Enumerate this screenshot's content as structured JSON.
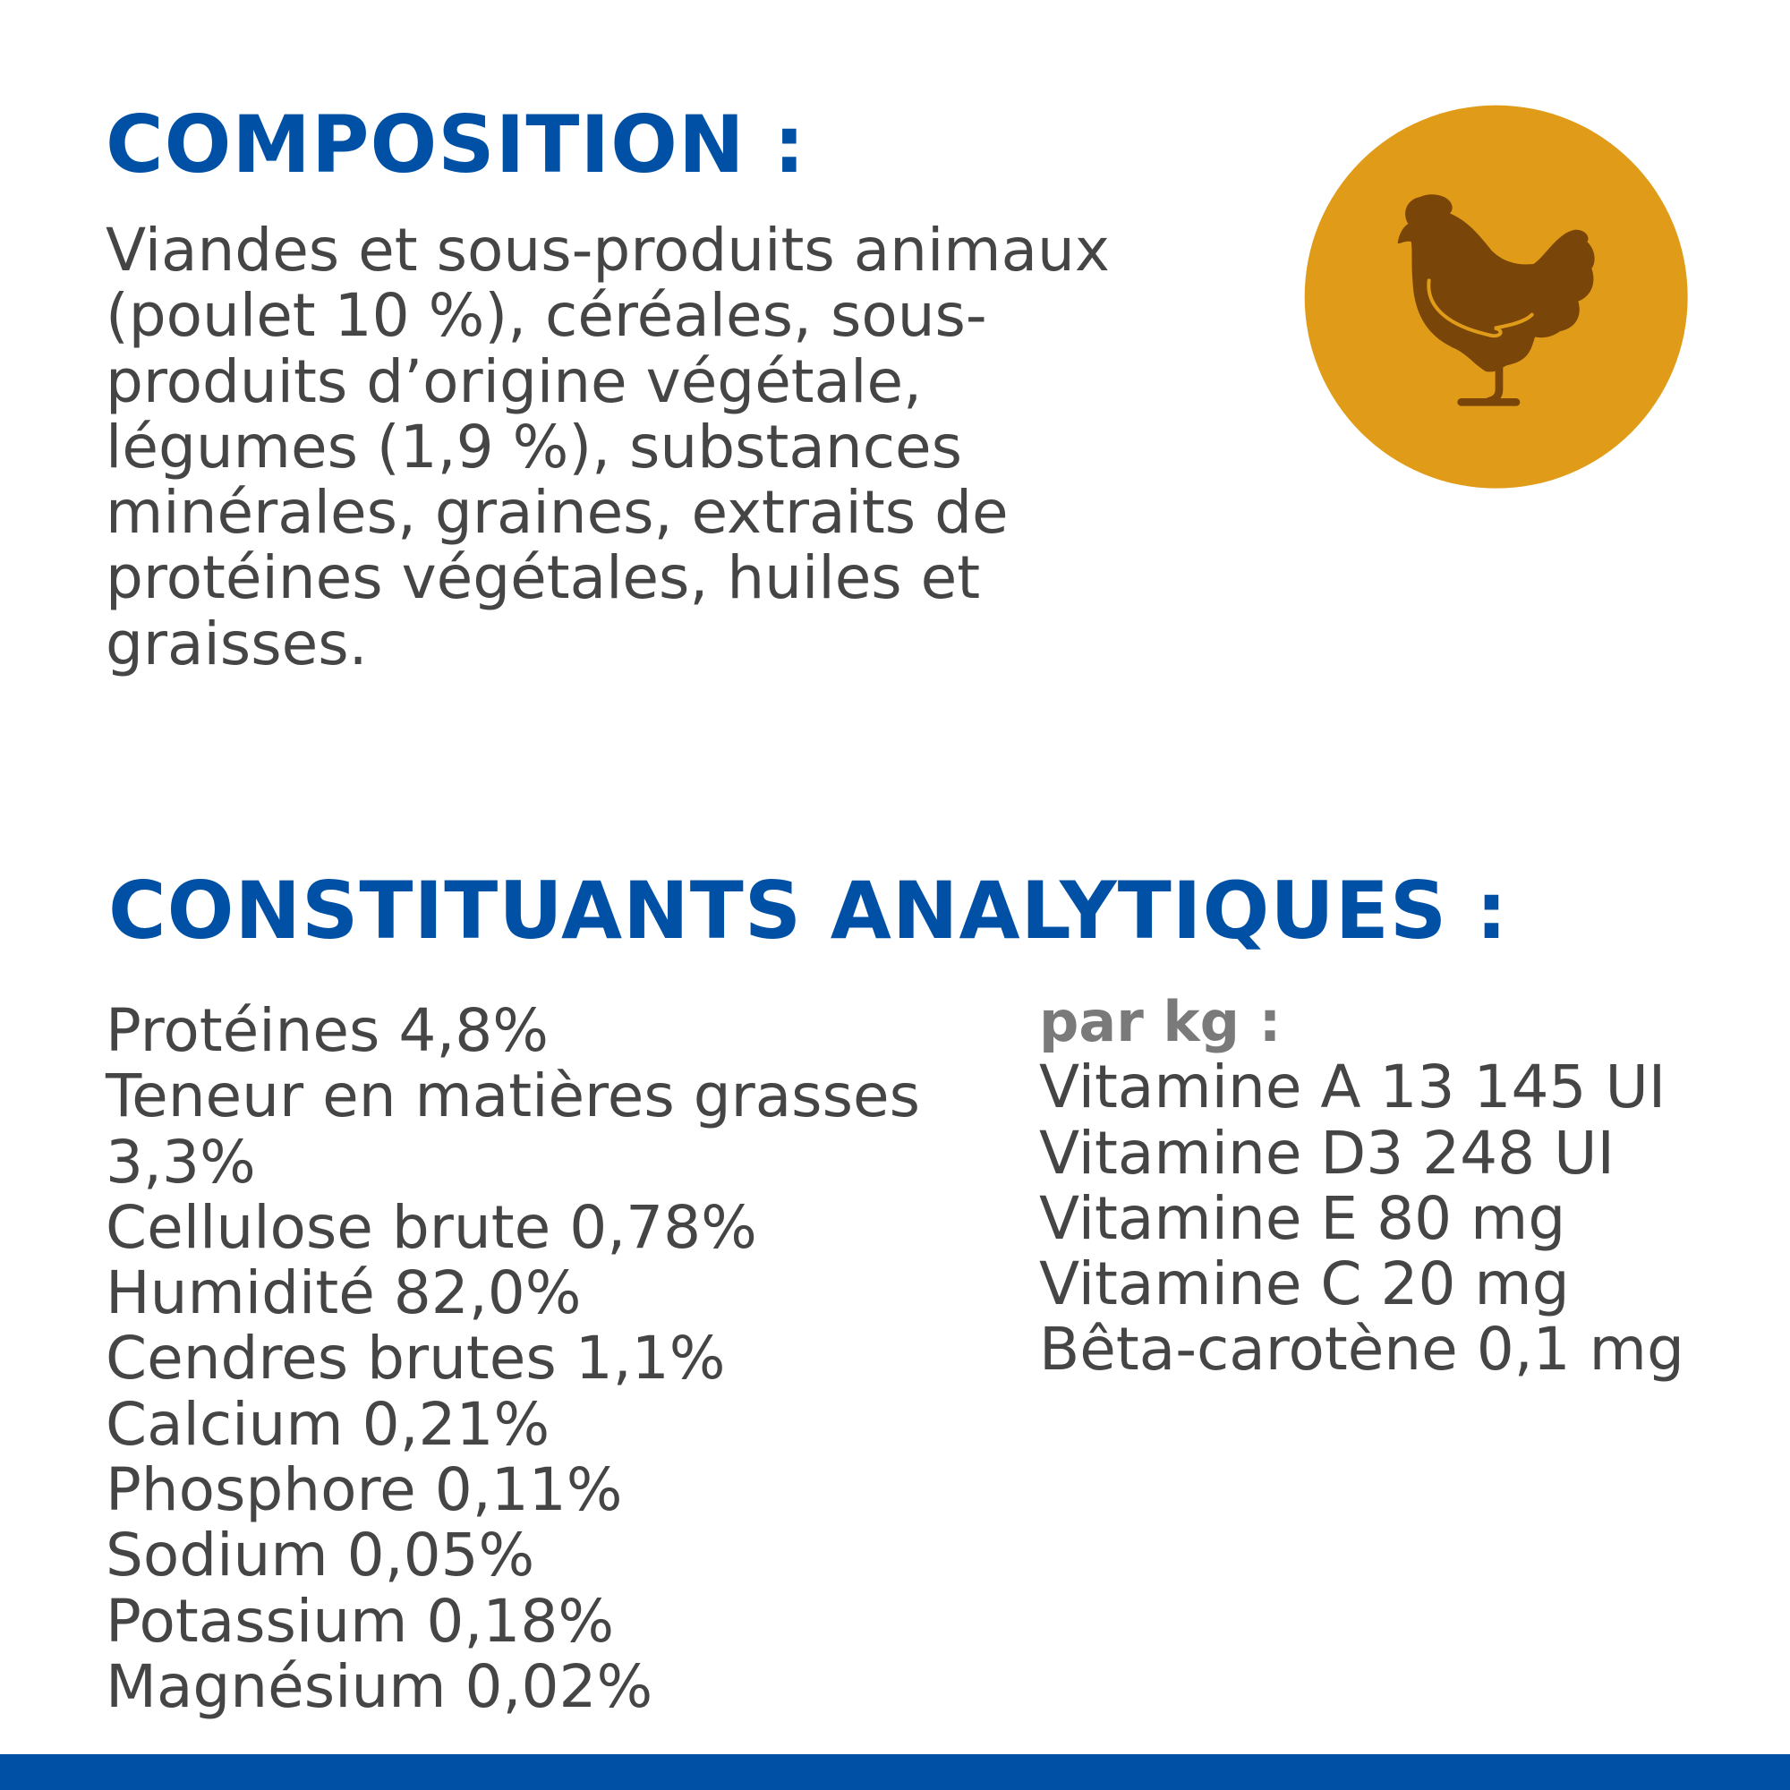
{
  "composition": {
    "title": "COMPOSITION :",
    "text": "Viandes et sous-produits animaux (poulet 10 %), céréales, sous-produits d’origine végétale, légumes (1,9 %), substances minérales, graines, extraits de protéines végétales, huiles et graisses."
  },
  "analytical": {
    "title": "CONSTITUANTS ANALYTIQUES :",
    "items": [
      "Protéines 4,8%",
      "Teneur en matières grasses 3,3%",
      "Cellulose brute 0,78%",
      "Humidité 82,0%",
      "Cendres brutes 1,1%",
      "Calcium 0,21%",
      "Phosphore 0,11%",
      "Sodium 0,05%",
      "Potassium 0,18%",
      "Magnésium 0,02%"
    ],
    "per_kg_label": "par kg :",
    "per_kg_items": [
      "Vitamine A 13 145 UI",
      "Vitamine D3 248 UI",
      "Vitamine E 80 mg",
      "Vitamine C 20 mg",
      "Bêta-carotène 0,1 mg"
    ]
  },
  "icon": {
    "name": "chicken-icon",
    "circle_color": "#e09c18",
    "chicken_color": "#7a4508"
  },
  "colors": {
    "title": "#0051a5",
    "text": "#454545",
    "bottom_bar": "#0051a5"
  }
}
